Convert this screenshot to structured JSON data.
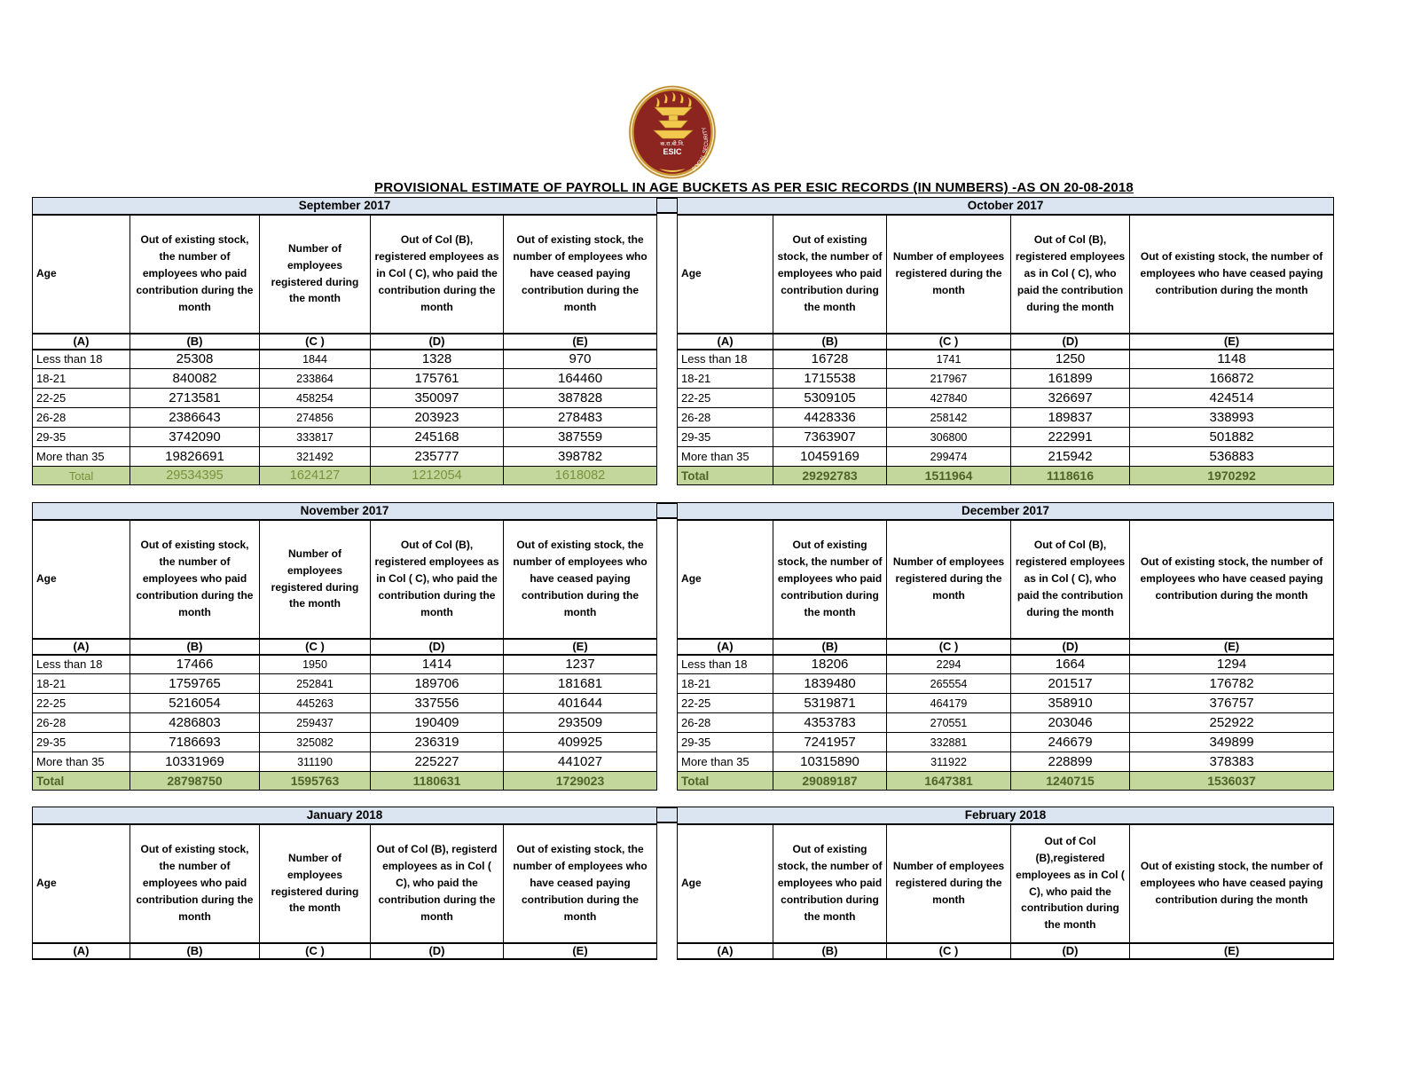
{
  "title": "PROVISIONAL ESTIMATE OF PAYROLL IN AGE BUCKETS AS PER ESIC RECORDS (IN NUMBERS) -AS ON 20-08-2018",
  "logo": {
    "text": "ESIC",
    "ring_text": "SOCIAL SECURITY",
    "colors": {
      "maroon": "#8c2420",
      "gold": "#c9972f",
      "flame": "#f2c94c",
      "cream": "#f7ecd2"
    }
  },
  "colors": {
    "month_band_bg": "#dbe5f1",
    "total_row_bg": "#c3d69b",
    "total_text_bold": "#4f6228",
    "total_text_light": "#76923c",
    "border": "#000000"
  },
  "column_letters": [
    "(A)",
    "(B)",
    "(C )",
    "(D)",
    "(E)"
  ],
  "tables": [
    {
      "month": "September 2017",
      "headers": [
        "Age",
        "Out of existing stock, the number of employees who paid contribution during the month",
        "Number of employees registered during the month",
        "Out of Col (B), registered employees as in Col ( C), who paid the contribution during the month",
        "Out of existing stock, the number of  employees  who have ceased paying contribution during the month"
      ],
      "rows": [
        [
          "Less than 18",
          "25308",
          "1844",
          "1328",
          "970"
        ],
        [
          "18-21",
          "840082",
          "233864",
          "175761",
          "164460"
        ],
        [
          "22-25",
          "2713581",
          "458254",
          "350097",
          "387828"
        ],
        [
          "26-28",
          "2386643",
          "274856",
          "203923",
          "278483"
        ],
        [
          "29-35",
          "3742090",
          "333817",
          "245168",
          "387559"
        ],
        [
          "More than 35",
          "19826691",
          "321492",
          "235777",
          "398782"
        ]
      ],
      "total": {
        "label": "Total",
        "values": [
          "29534395",
          "1624127",
          "1212054",
          "1618082"
        ],
        "variant": "light"
      }
    },
    {
      "month": "October 2017",
      "headers": [
        "Age",
        "Out of existing stock, the number of employees who paid contribution during the month",
        "Number of employees registered during the month",
        "Out of Col (B), registered employees as in Col ( C), who paid the contribution during the month",
        "Out of existing stock, the number of  employees  who have ceased paying contribution during the month"
      ],
      "rows": [
        [
          "Less than 18",
          "16728",
          "1741",
          "1250",
          "1148"
        ],
        [
          "18-21",
          "1715538",
          "217967",
          "161899",
          "166872"
        ],
        [
          "22-25",
          "5309105",
          "427840",
          "326697",
          "424514"
        ],
        [
          "26-28",
          "4428336",
          "258142",
          "189837",
          "338993"
        ],
        [
          "29-35",
          "7363907",
          "306800",
          "222991",
          "501882"
        ],
        [
          "More than 35",
          "10459169",
          "299474",
          "215942",
          "536883"
        ]
      ],
      "total": {
        "label": "Total",
        "values": [
          "29292783",
          "1511964",
          "1118616",
          "1970292"
        ],
        "variant": "bold"
      }
    },
    {
      "month": "November 2017",
      "headers": [
        "Age",
        "Out of existing stock, the number of employees who paid contribution during the month",
        "Number of employees registered during the month",
        "Out of Col (B), registered employees as in Col ( C), who paid the contribution during the month",
        "Out of existing stock, the number of  employees  who have ceased paying contribution during the month"
      ],
      "rows": [
        [
          "Less than 18",
          "17466",
          "1950",
          "1414",
          "1237"
        ],
        [
          "18-21",
          "1759765",
          "252841",
          "189706",
          "181681"
        ],
        [
          "22-25",
          "5216054",
          "445263",
          "337556",
          "401644"
        ],
        [
          "26-28",
          "4286803",
          "259437",
          "190409",
          "293509"
        ],
        [
          "29-35",
          "7186693",
          "325082",
          "236319",
          "409925"
        ],
        [
          "More than 35",
          "10331969",
          "311190",
          "225227",
          "441027"
        ]
      ],
      "total": {
        "label": "Total",
        "values": [
          "28798750",
          "1595763",
          "1180631",
          "1729023"
        ],
        "variant": "bold"
      }
    },
    {
      "month": "December 2017",
      "headers": [
        "Age",
        "Out of existing stock, the number of employees who paid contribution during the month",
        "Number of employees registered during the month",
        "Out of Col (B), registered employees as in Col ( C), who paid the contribution during the month",
        "Out of existing stock, the number of  employees  who have ceased paying contribution during the month"
      ],
      "rows": [
        [
          "Less than 18",
          "18206",
          "2294",
          "1664",
          "1294"
        ],
        [
          "18-21",
          "1839480",
          "265554",
          "201517",
          "176782"
        ],
        [
          "22-25",
          "5319871",
          "464179",
          "358910",
          "376757"
        ],
        [
          "26-28",
          "4353783",
          "270551",
          "203046",
          "252922"
        ],
        [
          "29-35",
          "7241957",
          "332881",
          "246679",
          "349899"
        ],
        [
          "More than 35",
          "10315890",
          "311922",
          "228899",
          "378383"
        ]
      ],
      "total": {
        "label": "Total",
        "values": [
          "29089187",
          "1647381",
          "1240715",
          "1536037"
        ],
        "variant": "bold"
      }
    },
    {
      "month": "January 2018",
      "headers": [
        "Age",
        "Out of existing stock, the number of employees who paid contribution during the month",
        "Number of employees registered during the month",
        "Out of Col (B), registerd employees as in Col ( C), who paid the contribution during the month",
        "Out of existing stock, the number of  employees  who have ceased paying contribution during the month"
      ],
      "rows": [],
      "total": null
    },
    {
      "month": "February 2018",
      "headers": [
        "Age",
        "Out of existing stock, the number of employees who paid contribution during the month",
        "Number of employees registered during the month",
        "Out of Col (B),registered employees as in Col ( C), who paid the contribution during the month",
        "Out of existing stock, the number of  employees  who have ceased paying contribution during the month"
      ],
      "rows": [],
      "total": null
    }
  ]
}
